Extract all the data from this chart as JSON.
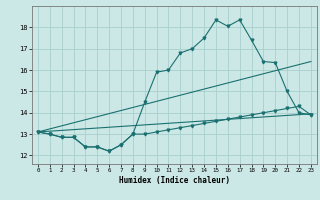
{
  "xlabel": "Humidex (Indice chaleur)",
  "xlim": [
    -0.5,
    23.5
  ],
  "ylim": [
    11.6,
    19.0
  ],
  "yticks": [
    12,
    13,
    14,
    15,
    16,
    17,
    18
  ],
  "xticks": [
    0,
    1,
    2,
    3,
    4,
    5,
    6,
    7,
    8,
    9,
    10,
    11,
    12,
    13,
    14,
    15,
    16,
    17,
    18,
    19,
    20,
    21,
    22,
    23
  ],
  "bg_color": "#cce8e6",
  "grid_color": "#a8d0ce",
  "line_color": "#1a7070",
  "curve_x": [
    0,
    1,
    2,
    3,
    4,
    5,
    6,
    7,
    8,
    9,
    10,
    11,
    12,
    13,
    14,
    15,
    16,
    17,
    18,
    19,
    20,
    21,
    22,
    23
  ],
  "curve_y": [
    13.1,
    13.0,
    12.85,
    12.85,
    12.4,
    12.4,
    12.2,
    12.5,
    13.0,
    14.5,
    15.9,
    16.0,
    16.8,
    17.0,
    17.5,
    18.35,
    18.05,
    18.35,
    17.4,
    16.4,
    16.35,
    15.0,
    14.0,
    13.9
  ],
  "bottom_x": [
    0,
    1,
    2,
    3,
    4,
    5,
    6,
    7,
    8,
    9,
    10,
    11,
    12,
    13,
    14,
    15,
    16,
    17,
    18,
    19,
    20,
    21,
    22,
    23
  ],
  "bottom_y": [
    13.1,
    13.0,
    12.85,
    12.85,
    12.4,
    12.4,
    12.2,
    12.5,
    13.0,
    13.0,
    13.1,
    13.2,
    13.3,
    13.4,
    13.5,
    13.6,
    13.7,
    13.8,
    13.9,
    14.0,
    14.1,
    14.2,
    14.3,
    13.9
  ],
  "trend1_x": [
    0,
    23
  ],
  "trend1_y": [
    13.1,
    16.4
  ],
  "trend2_x": [
    0,
    23
  ],
  "trend2_y": [
    13.1,
    13.95
  ]
}
